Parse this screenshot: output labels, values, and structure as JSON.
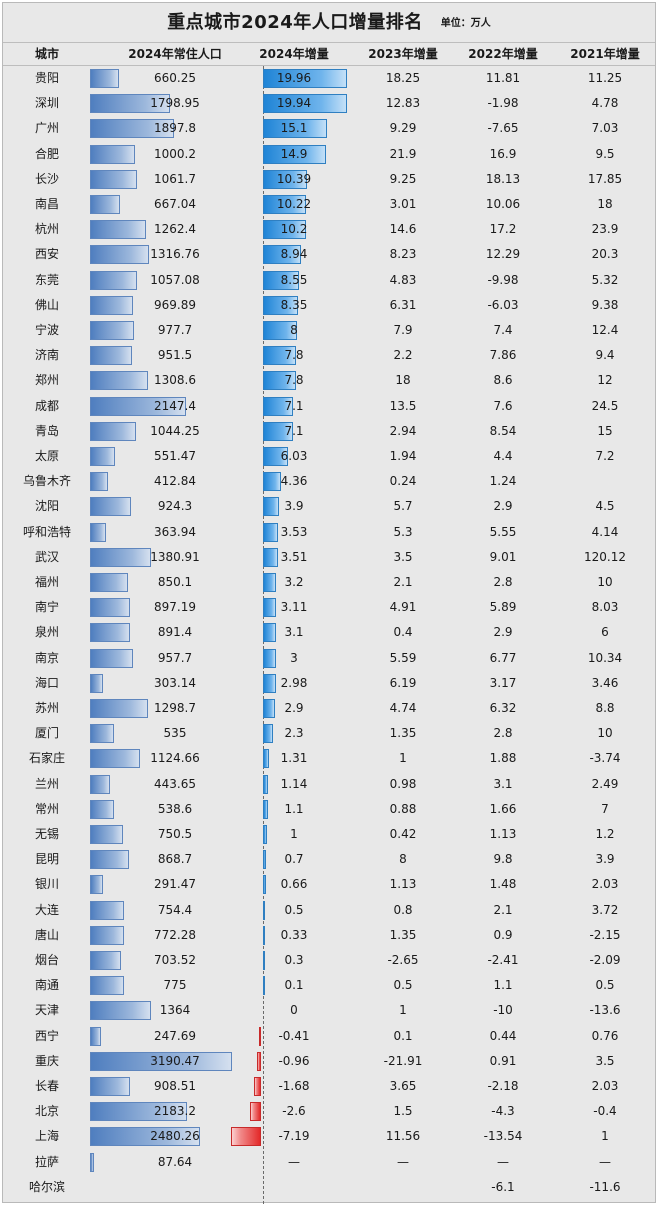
{
  "title": "重点城市2024年人口增量排名",
  "unit": "单位：万人",
  "headers": [
    "城市",
    "2024年常住人口",
    "2024年增量",
    "2023年增量",
    "2022年增量",
    "2021年增量"
  ],
  "colors": {
    "population_bar": "#4f7ebf",
    "increase_bar": "#1f84d6",
    "decrease_bar": "#e32a2a",
    "background": "#e8e8e8"
  },
  "chart_data": {
    "type": "table",
    "title": "重点城市2024年人口增量排名",
    "columns": [
      "城市",
      "2024年常住人口",
      "2024年增量",
      "2023年增量",
      "2022年增量",
      "2021年增量"
    ],
    "population_max": 3190.47,
    "increase_max_abs": 19.96,
    "rows": [
      {
        "city": "贵阳",
        "pop": "660.25",
        "inc2024": "19.96",
        "inc2023": "18.25",
        "inc2022": "11.81",
        "inc2021": "11.25"
      },
      {
        "city": "深圳",
        "pop": "1798.95",
        "inc2024": "19.94",
        "inc2023": "12.83",
        "inc2022": "-1.98",
        "inc2021": "4.78"
      },
      {
        "city": "广州",
        "pop": "1897.8",
        "inc2024": "15.1",
        "inc2023": "9.29",
        "inc2022": "-7.65",
        "inc2021": "7.03"
      },
      {
        "city": "合肥",
        "pop": "1000.2",
        "inc2024": "14.9",
        "inc2023": "21.9",
        "inc2022": "16.9",
        "inc2021": "9.5"
      },
      {
        "city": "长沙",
        "pop": "1061.7",
        "inc2024": "10.39",
        "inc2023": "9.25",
        "inc2022": "18.13",
        "inc2021": "17.85"
      },
      {
        "city": "南昌",
        "pop": "667.04",
        "inc2024": "10.22",
        "inc2023": "3.01",
        "inc2022": "10.06",
        "inc2021": "18"
      },
      {
        "city": "杭州",
        "pop": "1262.4",
        "inc2024": "10.2",
        "inc2023": "14.6",
        "inc2022": "17.2",
        "inc2021": "23.9"
      },
      {
        "city": "西安",
        "pop": "1316.76",
        "inc2024": "8.94",
        "inc2023": "8.23",
        "inc2022": "12.29",
        "inc2021": "20.3"
      },
      {
        "city": "东莞",
        "pop": "1057.08",
        "inc2024": "8.55",
        "inc2023": "4.83",
        "inc2022": "-9.98",
        "inc2021": "5.32"
      },
      {
        "city": "佛山",
        "pop": "969.89",
        "inc2024": "8.35",
        "inc2023": "6.31",
        "inc2022": "-6.03",
        "inc2021": "9.38"
      },
      {
        "city": "宁波",
        "pop": "977.7",
        "inc2024": "8",
        "inc2023": "7.9",
        "inc2022": "7.4",
        "inc2021": "12.4"
      },
      {
        "city": "济南",
        "pop": "951.5",
        "inc2024": "7.8",
        "inc2023": "2.2",
        "inc2022": "7.86",
        "inc2021": "9.4"
      },
      {
        "city": "郑州",
        "pop": "1308.6",
        "inc2024": "7.8",
        "inc2023": "18",
        "inc2022": "8.6",
        "inc2021": "12"
      },
      {
        "city": "成都",
        "pop": "2147.4",
        "inc2024": "7.1",
        "inc2023": "13.5",
        "inc2022": "7.6",
        "inc2021": "24.5"
      },
      {
        "city": "青岛",
        "pop": "1044.25",
        "inc2024": "7.1",
        "inc2023": "2.94",
        "inc2022": "8.54",
        "inc2021": "15"
      },
      {
        "city": "太原",
        "pop": "551.47",
        "inc2024": "6.03",
        "inc2023": "1.94",
        "inc2022": "4.4",
        "inc2021": "7.2"
      },
      {
        "city": "乌鲁木齐",
        "pop": "412.84",
        "inc2024": "4.36",
        "inc2023": "0.24",
        "inc2022": "1.24",
        "inc2021": ""
      },
      {
        "city": "沈阳",
        "pop": "924.3",
        "inc2024": "3.9",
        "inc2023": "5.7",
        "inc2022": "2.9",
        "inc2021": "4.5"
      },
      {
        "city": "呼和浩特",
        "pop": "363.94",
        "inc2024": "3.53",
        "inc2023": "5.3",
        "inc2022": "5.55",
        "inc2021": "4.14"
      },
      {
        "city": "武汉",
        "pop": "1380.91",
        "inc2024": "3.51",
        "inc2023": "3.5",
        "inc2022": "9.01",
        "inc2021": "120.12"
      },
      {
        "city": "福州",
        "pop": "850.1",
        "inc2024": "3.2",
        "inc2023": "2.1",
        "inc2022": "2.8",
        "inc2021": "10"
      },
      {
        "city": "南宁",
        "pop": "897.19",
        "inc2024": "3.11",
        "inc2023": "4.91",
        "inc2022": "5.89",
        "inc2021": "8.03"
      },
      {
        "city": "泉州",
        "pop": "891.4",
        "inc2024": "3.1",
        "inc2023": "0.4",
        "inc2022": "2.9",
        "inc2021": "6"
      },
      {
        "city": "南京",
        "pop": "957.7",
        "inc2024": "3",
        "inc2023": "5.59",
        "inc2022": "6.77",
        "inc2021": "10.34"
      },
      {
        "city": "海口",
        "pop": "303.14",
        "inc2024": "2.98",
        "inc2023": "6.19",
        "inc2022": "3.17",
        "inc2021": "3.46"
      },
      {
        "city": "苏州",
        "pop": "1298.7",
        "inc2024": "2.9",
        "inc2023": "4.74",
        "inc2022": "6.32",
        "inc2021": "8.8"
      },
      {
        "city": "厦门",
        "pop": "535",
        "inc2024": "2.3",
        "inc2023": "1.35",
        "inc2022": "2.8",
        "inc2021": "10"
      },
      {
        "city": "石家庄",
        "pop": "1124.66",
        "inc2024": "1.31",
        "inc2023": "1",
        "inc2022": "1.88",
        "inc2021": "-3.74"
      },
      {
        "city": "兰州",
        "pop": "443.65",
        "inc2024": "1.14",
        "inc2023": "0.98",
        "inc2022": "3.1",
        "inc2021": "2.49"
      },
      {
        "city": "常州",
        "pop": "538.6",
        "inc2024": "1.1",
        "inc2023": "0.88",
        "inc2022": "1.66",
        "inc2021": "7"
      },
      {
        "city": "无锡",
        "pop": "750.5",
        "inc2024": "1",
        "inc2023": "0.42",
        "inc2022": "1.13",
        "inc2021": "1.2"
      },
      {
        "city": "昆明",
        "pop": "868.7",
        "inc2024": "0.7",
        "inc2023": "8",
        "inc2022": "9.8",
        "inc2021": "3.9"
      },
      {
        "city": "银川",
        "pop": "291.47",
        "inc2024": "0.66",
        "inc2023": "1.13",
        "inc2022": "1.48",
        "inc2021": "2.03"
      },
      {
        "city": "大连",
        "pop": "754.4",
        "inc2024": "0.5",
        "inc2023": "0.8",
        "inc2022": "2.1",
        "inc2021": "3.72"
      },
      {
        "city": "唐山",
        "pop": "772.28",
        "inc2024": "0.33",
        "inc2023": "1.35",
        "inc2022": "0.9",
        "inc2021": "-2.15"
      },
      {
        "city": "烟台",
        "pop": "703.52",
        "inc2024": "0.3",
        "inc2023": "-2.65",
        "inc2022": "-2.41",
        "inc2021": "-2.09"
      },
      {
        "city": "南通",
        "pop": "775",
        "inc2024": "0.1",
        "inc2023": "0.5",
        "inc2022": "1.1",
        "inc2021": "0.5"
      },
      {
        "city": "天津",
        "pop": "1364",
        "inc2024": "0",
        "inc2023": "1",
        "inc2022": "-10",
        "inc2021": "-13.6"
      },
      {
        "city": "西宁",
        "pop": "247.69",
        "inc2024": "-0.41",
        "inc2023": "0.1",
        "inc2022": "0.44",
        "inc2021": "0.76"
      },
      {
        "city": "重庆",
        "pop": "3190.47",
        "inc2024": "-0.96",
        "inc2023": "-21.91",
        "inc2022": "0.91",
        "inc2021": "3.5"
      },
      {
        "city": "长春",
        "pop": "908.51",
        "inc2024": "-1.68",
        "inc2023": "3.65",
        "inc2022": "-2.18",
        "inc2021": "2.03"
      },
      {
        "city": "北京",
        "pop": "2183.2",
        "inc2024": "-2.6",
        "inc2023": "1.5",
        "inc2022": "-4.3",
        "inc2021": "-0.4"
      },
      {
        "city": "上海",
        "pop": "2480.26",
        "inc2024": "-7.19",
        "inc2023": "11.56",
        "inc2022": "-13.54",
        "inc2021": "1"
      },
      {
        "city": "拉萨",
        "pop": "87.64",
        "inc2024": "—",
        "inc2023": "—",
        "inc2022": "—",
        "inc2021": "—"
      },
      {
        "city": "哈尔滨",
        "pop": "",
        "inc2024": "",
        "inc2023": "",
        "inc2022": "-6.1",
        "inc2021": "-11.6"
      }
    ]
  }
}
